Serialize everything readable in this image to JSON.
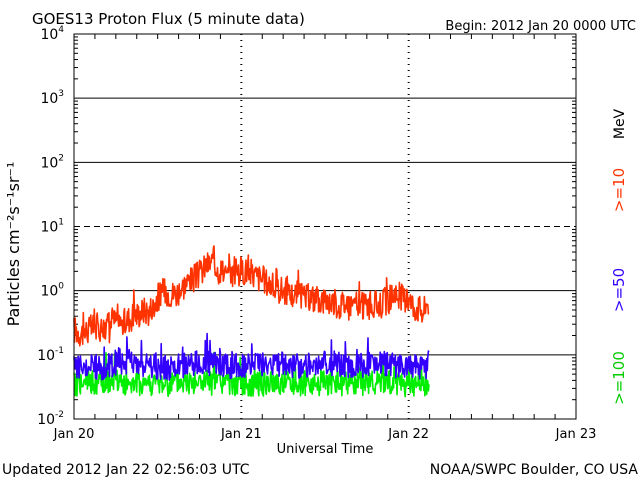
{
  "chart_data": {
    "type": "line",
    "title": "GOES13 Proton Flux (5 minute data)",
    "begin_label": "Begin: 2012 Jan 20 0000 UTC",
    "xlabel": "Universal Time",
    "ylabel": "Particles cm⁻²s⁻¹sr⁻¹",
    "yscale": "log",
    "ylim": [
      0.01,
      10000
    ],
    "xlim": [
      0,
      72
    ],
    "x_unit": "hours since 2012 Jan 20 0000 UTC",
    "x_ticks": [
      {
        "x": 0,
        "label": "Jan 20"
      },
      {
        "x": 24,
        "label": "Jan 21"
      },
      {
        "x": 48,
        "label": "Jan 22"
      },
      {
        "x": 72,
        "label": "Jan 23"
      }
    ],
    "y_ticks": [
      {
        "value": 10000,
        "base": "10",
        "exp": "4"
      },
      {
        "value": 1000,
        "base": "10",
        "exp": "3"
      },
      {
        "value": 100,
        "base": "10",
        "exp": "2"
      },
      {
        "value": 10,
        "base": "10",
        "exp": "1"
      },
      {
        "value": 1,
        "base": "10",
        "exp": "0"
      },
      {
        "value": 0.1,
        "base": "10",
        "exp": "-1"
      },
      {
        "value": 0.01,
        "base": "10",
        "exp": "-2"
      }
    ],
    "thresholds": [
      {
        "value": 10,
        "style": "dashed"
      }
    ],
    "legend": {
      "unit": "MeV",
      "position": "right"
    },
    "series": [
      {
        "name": ">=10",
        "color": "#ff3300",
        "x": [
          0,
          1,
          2,
          3,
          4,
          5,
          6,
          7,
          8,
          9,
          10,
          11,
          12,
          13,
          14,
          15,
          16,
          17,
          18,
          19,
          20,
          21,
          22,
          23,
          24,
          25,
          26,
          27,
          28,
          29,
          30,
          31,
          32,
          33,
          34,
          35,
          36,
          37,
          38,
          39,
          40,
          41,
          42,
          43,
          44,
          45,
          46,
          47,
          48,
          49,
          50,
          51
        ],
        "values": [
          0.25,
          0.22,
          0.24,
          0.28,
          0.26,
          0.3,
          0.35,
          0.3,
          0.38,
          0.42,
          0.5,
          0.45,
          0.8,
          1.0,
          0.9,
          0.95,
          1.3,
          1.5,
          1.8,
          2.5,
          2.8,
          2.2,
          1.6,
          1.9,
          2.1,
          2.0,
          1.7,
          1.5,
          1.3,
          1.0,
          1.05,
          0.85,
          0.9,
          0.75,
          0.8,
          0.7,
          0.72,
          0.68,
          0.6,
          0.65,
          0.62,
          0.55,
          0.6,
          0.58,
          0.65,
          0.7,
          0.9,
          0.8,
          0.7,
          0.55,
          0.5,
          0.7
        ]
      },
      {
        "name": ">=50",
        "color": "#3300ff",
        "x": [
          0,
          2,
          4,
          6,
          8,
          10,
          12,
          14,
          16,
          18,
          20,
          22,
          24,
          26,
          28,
          30,
          32,
          34,
          36,
          38,
          40,
          42,
          44,
          46,
          48,
          50,
          51
        ],
        "values": [
          0.065,
          0.07,
          0.06,
          0.075,
          0.08,
          0.07,
          0.065,
          0.06,
          0.07,
          0.075,
          0.07,
          0.068,
          0.065,
          0.07,
          0.072,
          0.07,
          0.068,
          0.07,
          0.072,
          0.07,
          0.068,
          0.07,
          0.072,
          0.07,
          0.068,
          0.065,
          0.07
        ]
      },
      {
        "name": ">=100",
        "color": "#00ee00",
        "x": [
          0,
          2,
          4,
          6,
          8,
          10,
          12,
          14,
          16,
          18,
          20,
          22,
          24,
          26,
          28,
          30,
          32,
          34,
          36,
          38,
          40,
          42,
          44,
          46,
          48,
          50,
          51
        ],
        "values": [
          0.035,
          0.038,
          0.036,
          0.04,
          0.035,
          0.037,
          0.036,
          0.035,
          0.038,
          0.037,
          0.036,
          0.035,
          0.037,
          0.036,
          0.035,
          0.038,
          0.036,
          0.035,
          0.037,
          0.036,
          0.035,
          0.036,
          0.038,
          0.036,
          0.035,
          0.036,
          0.035
        ]
      }
    ],
    "footer_left": "Updated 2012 Jan 22 02:56:03 UTC",
    "footer_right": "NOAA/SWPC Boulder, CO USA"
  }
}
